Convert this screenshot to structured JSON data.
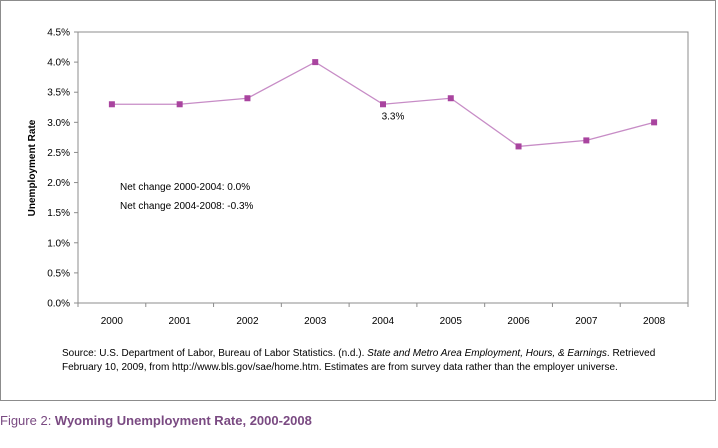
{
  "chart_data": {
    "type": "line",
    "title": "",
    "xlabel": "",
    "ylabel": "Unemployment Rate",
    "categories": [
      "2000",
      "2001",
      "2002",
      "2003",
      "2004",
      "2005",
      "2006",
      "2007",
      "2008"
    ],
    "series": [
      {
        "values": [
          3.3,
          3.3,
          3.4,
          4.0,
          3.3,
          3.4,
          2.6,
          2.7,
          3.0
        ]
      }
    ],
    "ylim": [
      0,
      4.5
    ],
    "yticks": [
      "0.0%",
      "0.5%",
      "1.0%",
      "1.5%",
      "2.0%",
      "2.5%",
      "3.0%",
      "3.5%",
      "4.0%",
      "4.5%"
    ],
    "grid": false,
    "legend": "none",
    "data_labels": [
      {
        "category": "2004",
        "text": "3.3%"
      }
    ],
    "annotations": [
      "Net change 2000-2004: 0.0%",
      "Net change 2004-2008: -0.3%"
    ],
    "colors": {
      "line": "#c78cc6",
      "marker": "#a9449f",
      "axis": "#8c8c8c"
    }
  },
  "source": {
    "prefix": "Source: U.S. Department of Labor, Bureau of Labor Statistics. (n.d.). ",
    "title_italic": "State and Metro Area Employment, Hours, & Earnings",
    "suffix": ". Retrieved February 10, 2009, from http://www.bls.gov/sae/home.htm. Estimates are from survey data rather than the employer universe."
  },
  "caption": {
    "label": "Figure 2: ",
    "title": "Wyoming Unemployment Rate, 2000-2008"
  }
}
